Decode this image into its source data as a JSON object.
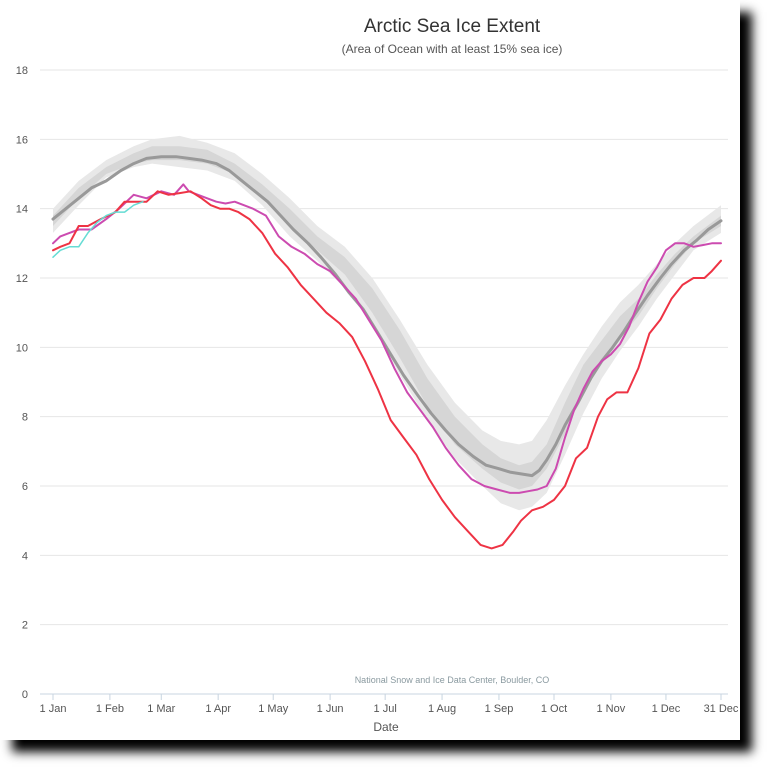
{
  "chart_data": {
    "type": "line",
    "title": "Arctic Sea Ice Extent",
    "subtitle": "(Area of Ocean with at least 15% sea ice)",
    "xlabel": "Date",
    "ylabel": "",
    "credit": "National Snow and Ice Data Center, Boulder, CO",
    "ylim": [
      0,
      18
    ],
    "yticks": [
      0,
      2,
      4,
      6,
      8,
      10,
      12,
      14,
      16,
      18
    ],
    "xlim": [
      1,
      365
    ],
    "xticks": [
      {
        "day": 1,
        "label": "1 Jan"
      },
      {
        "day": 32,
        "label": "1 Feb"
      },
      {
        "day": 60,
        "label": "1 Mar"
      },
      {
        "day": 91,
        "label": "1 Apr"
      },
      {
        "day": 121,
        "label": "1 May"
      },
      {
        "day": 152,
        "label": "1 Jun"
      },
      {
        "day": 182,
        "label": "1 Jul"
      },
      {
        "day": 213,
        "label": "1 Aug"
      },
      {
        "day": 244,
        "label": "1 Sep"
      },
      {
        "day": 274,
        "label": "1 Oct"
      },
      {
        "day": 305,
        "label": "1 Nov"
      },
      {
        "day": 335,
        "label": "1 Dec"
      },
      {
        "day": 365,
        "label": "31 Dec"
      }
    ],
    "grid": true,
    "legend": "none",
    "band_outer": {
      "color": "#e8e8e8",
      "x": [
        1,
        15,
        30,
        45,
        55,
        70,
        85,
        100,
        115,
        130,
        145,
        160,
        175,
        190,
        205,
        220,
        235,
        245,
        255,
        262,
        270,
        280,
        290,
        300,
        310,
        320,
        330,
        340,
        350,
        365
      ],
      "upper": [
        14.0,
        14.8,
        15.4,
        15.8,
        16.0,
        16.1,
        15.9,
        15.6,
        15.0,
        14.3,
        13.5,
        12.9,
        12.0,
        10.8,
        9.5,
        8.4,
        7.6,
        7.3,
        7.2,
        7.3,
        7.9,
        8.9,
        9.8,
        10.6,
        11.3,
        11.8,
        12.4,
        13.0,
        13.5,
        14.1
      ],
      "lower": [
        13.3,
        14.1,
        14.9,
        15.2,
        15.3,
        15.2,
        15.1,
        14.8,
        14.1,
        13.2,
        12.5,
        11.7,
        10.7,
        9.2,
        7.9,
        6.8,
        6.0,
        5.5,
        5.3,
        5.4,
        5.8,
        6.9,
        8.1,
        9.1,
        9.9,
        10.6,
        11.4,
        12.1,
        12.8,
        13.3
      ]
    },
    "band_inner": {
      "color": "#d6d6d6",
      "x": [
        1,
        15,
        30,
        45,
        55,
        70,
        85,
        100,
        115,
        130,
        145,
        160,
        175,
        190,
        205,
        220,
        235,
        245,
        255,
        262,
        270,
        280,
        290,
        300,
        310,
        320,
        330,
        340,
        350,
        365
      ],
      "upper": [
        13.8,
        14.6,
        15.2,
        15.6,
        15.8,
        15.8,
        15.7,
        15.3,
        14.7,
        14.0,
        13.2,
        12.6,
        11.7,
        10.5,
        9.1,
        8.0,
        7.2,
        6.8,
        6.6,
        6.7,
        7.2,
        8.4,
        9.5,
        10.2,
        10.9,
        11.4,
        12.1,
        12.7,
        13.2,
        13.8
      ],
      "lower": [
        13.5,
        14.3,
        15.0,
        15.3,
        15.4,
        15.4,
        15.3,
        15.0,
        14.3,
        13.5,
        12.8,
        12.1,
        11.0,
        9.7,
        8.3,
        7.2,
        6.5,
        6.1,
        5.9,
        6.0,
        6.5,
        7.5,
        8.8,
        9.6,
        10.3,
        10.9,
        11.7,
        12.4,
        13.0,
        13.5
      ]
    },
    "series": [
      {
        "color": "#999999",
        "width": 3,
        "x": [
          1,
          8,
          15,
          22,
          30,
          38,
          45,
          52,
          60,
          68,
          75,
          82,
          90,
          97,
          104,
          111,
          118,
          125,
          132,
          140,
          147,
          155,
          162,
          170,
          177,
          185,
          192,
          200,
          207,
          215,
          222,
          230,
          237,
          244,
          250,
          256,
          262,
          266,
          270,
          275,
          280,
          287,
          294,
          300,
          306,
          312,
          318,
          325,
          332,
          338,
          345,
          352,
          358,
          365
        ],
        "y": [
          13.7,
          14.0,
          14.3,
          14.6,
          14.8,
          15.1,
          15.3,
          15.45,
          15.5,
          15.5,
          15.45,
          15.4,
          15.3,
          15.1,
          14.8,
          14.5,
          14.2,
          13.8,
          13.4,
          13.0,
          12.6,
          12.1,
          11.6,
          11.1,
          10.5,
          9.8,
          9.2,
          8.6,
          8.1,
          7.6,
          7.2,
          6.85,
          6.6,
          6.5,
          6.4,
          6.35,
          6.3,
          6.45,
          6.75,
          7.2,
          7.75,
          8.4,
          9.1,
          9.6,
          10.0,
          10.45,
          10.95,
          11.5,
          12.0,
          12.4,
          12.8,
          13.1,
          13.4,
          13.65
        ]
      },
      {
        "color": "#cc4bb0",
        "width": 2,
        "x": [
          1,
          5,
          10,
          15,
          22,
          30,
          37,
          45,
          52,
          60,
          67,
          72,
          75,
          80,
          85,
          90,
          95,
          100,
          105,
          110,
          117,
          124,
          131,
          138,
          145,
          152,
          159,
          166,
          173,
          180,
          187,
          194,
          201,
          208,
          215,
          222,
          229,
          236,
          243,
          250,
          255,
          260,
          265,
          270,
          275,
          280,
          285,
          290,
          295,
          300,
          305,
          310,
          315,
          320,
          325,
          330,
          335,
          340,
          345,
          350,
          355,
          360,
          365
        ],
        "y": [
          13.0,
          13.2,
          13.3,
          13.4,
          13.4,
          13.7,
          14.0,
          14.4,
          14.3,
          14.5,
          14.4,
          14.7,
          14.5,
          14.4,
          14.3,
          14.2,
          14.15,
          14.2,
          14.1,
          14.0,
          13.8,
          13.2,
          12.9,
          12.7,
          12.4,
          12.2,
          11.8,
          11.4,
          10.8,
          10.2,
          9.4,
          8.7,
          8.2,
          7.7,
          7.1,
          6.6,
          6.2,
          6.0,
          5.9,
          5.8,
          5.8,
          5.85,
          5.9,
          6.0,
          6.5,
          7.4,
          8.2,
          8.8,
          9.3,
          9.6,
          9.8,
          10.1,
          10.6,
          11.3,
          11.9,
          12.3,
          12.8,
          13.0,
          13.0,
          12.9,
          12.95,
          13.0,
          13.0
        ]
      },
      {
        "color": "#ee3344",
        "width": 2,
        "x": [
          1,
          5,
          10,
          15,
          20,
          27,
          35,
          40,
          45,
          52,
          58,
          64,
          70,
          76,
          82,
          87,
          92,
          97,
          102,
          108,
          115,
          122,
          129,
          136,
          143,
          150,
          157,
          164,
          171,
          178,
          185,
          192,
          199,
          206,
          213,
          220,
          227,
          234,
          240,
          246,
          252,
          256,
          262,
          268,
          274,
          280,
          286,
          292,
          298,
          303,
          308,
          314,
          320,
          326,
          332,
          338,
          344,
          350,
          356,
          360,
          365
        ],
        "y": [
          12.8,
          12.9,
          13.0,
          13.5,
          13.5,
          13.7,
          13.9,
          14.2,
          14.2,
          14.2,
          14.5,
          14.4,
          14.45,
          14.5,
          14.3,
          14.1,
          14.0,
          14.0,
          13.9,
          13.7,
          13.3,
          12.7,
          12.3,
          11.8,
          11.4,
          11.0,
          10.7,
          10.3,
          9.6,
          8.8,
          7.9,
          7.4,
          6.9,
          6.2,
          5.6,
          5.1,
          4.7,
          4.3,
          4.2,
          4.3,
          4.7,
          5.0,
          5.3,
          5.4,
          5.6,
          6.0,
          6.8,
          7.1,
          8.0,
          8.5,
          8.7,
          8.7,
          9.4,
          10.4,
          10.8,
          11.4,
          11.8,
          12.0,
          12.0,
          12.2,
          12.5
        ]
      },
      {
        "color": "#66dcd4",
        "width": 1.5,
        "x": [
          1,
          5,
          10,
          15,
          20,
          25,
          30,
          35,
          40,
          45,
          50
        ],
        "y": [
          12.6,
          12.8,
          12.9,
          12.9,
          13.3,
          13.6,
          13.8,
          13.9,
          13.9,
          14.1,
          14.2
        ]
      }
    ]
  }
}
